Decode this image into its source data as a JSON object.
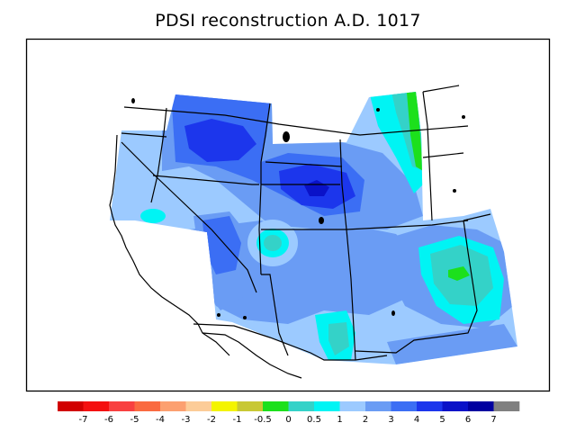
{
  "title": "PDSI reconstruction A.D. 1017",
  "legend": {
    "colors": [
      "#d10000",
      "#f41010",
      "#f84040",
      "#fa6a40",
      "#fca070",
      "#fccc98",
      "#f4f400",
      "#c8c834",
      "#1ce01c",
      "#34d2c8",
      "#00f4f4",
      "#9ccaff",
      "#6a9cf4",
      "#3b6ef4",
      "#1c36ec",
      "#0a12c8",
      "#0000a0",
      "#808080"
    ],
    "labels": [
      "-7",
      "-6",
      "-5",
      "-4",
      "-3",
      "-2",
      "-1",
      "-0.5",
      "0",
      "0.5",
      "1",
      "2",
      "3",
      "4",
      "5",
      "6",
      "7"
    ]
  },
  "field_colors": {
    "light": "#9ccaff",
    "mid": "#6a9cf4",
    "strong": "#3b6ef4",
    "stronger": "#1c36ec",
    "deep": "#0a12c8",
    "teal": "#34d2c8",
    "cyan": "#00f4f4",
    "green": "#1ce01c"
  }
}
